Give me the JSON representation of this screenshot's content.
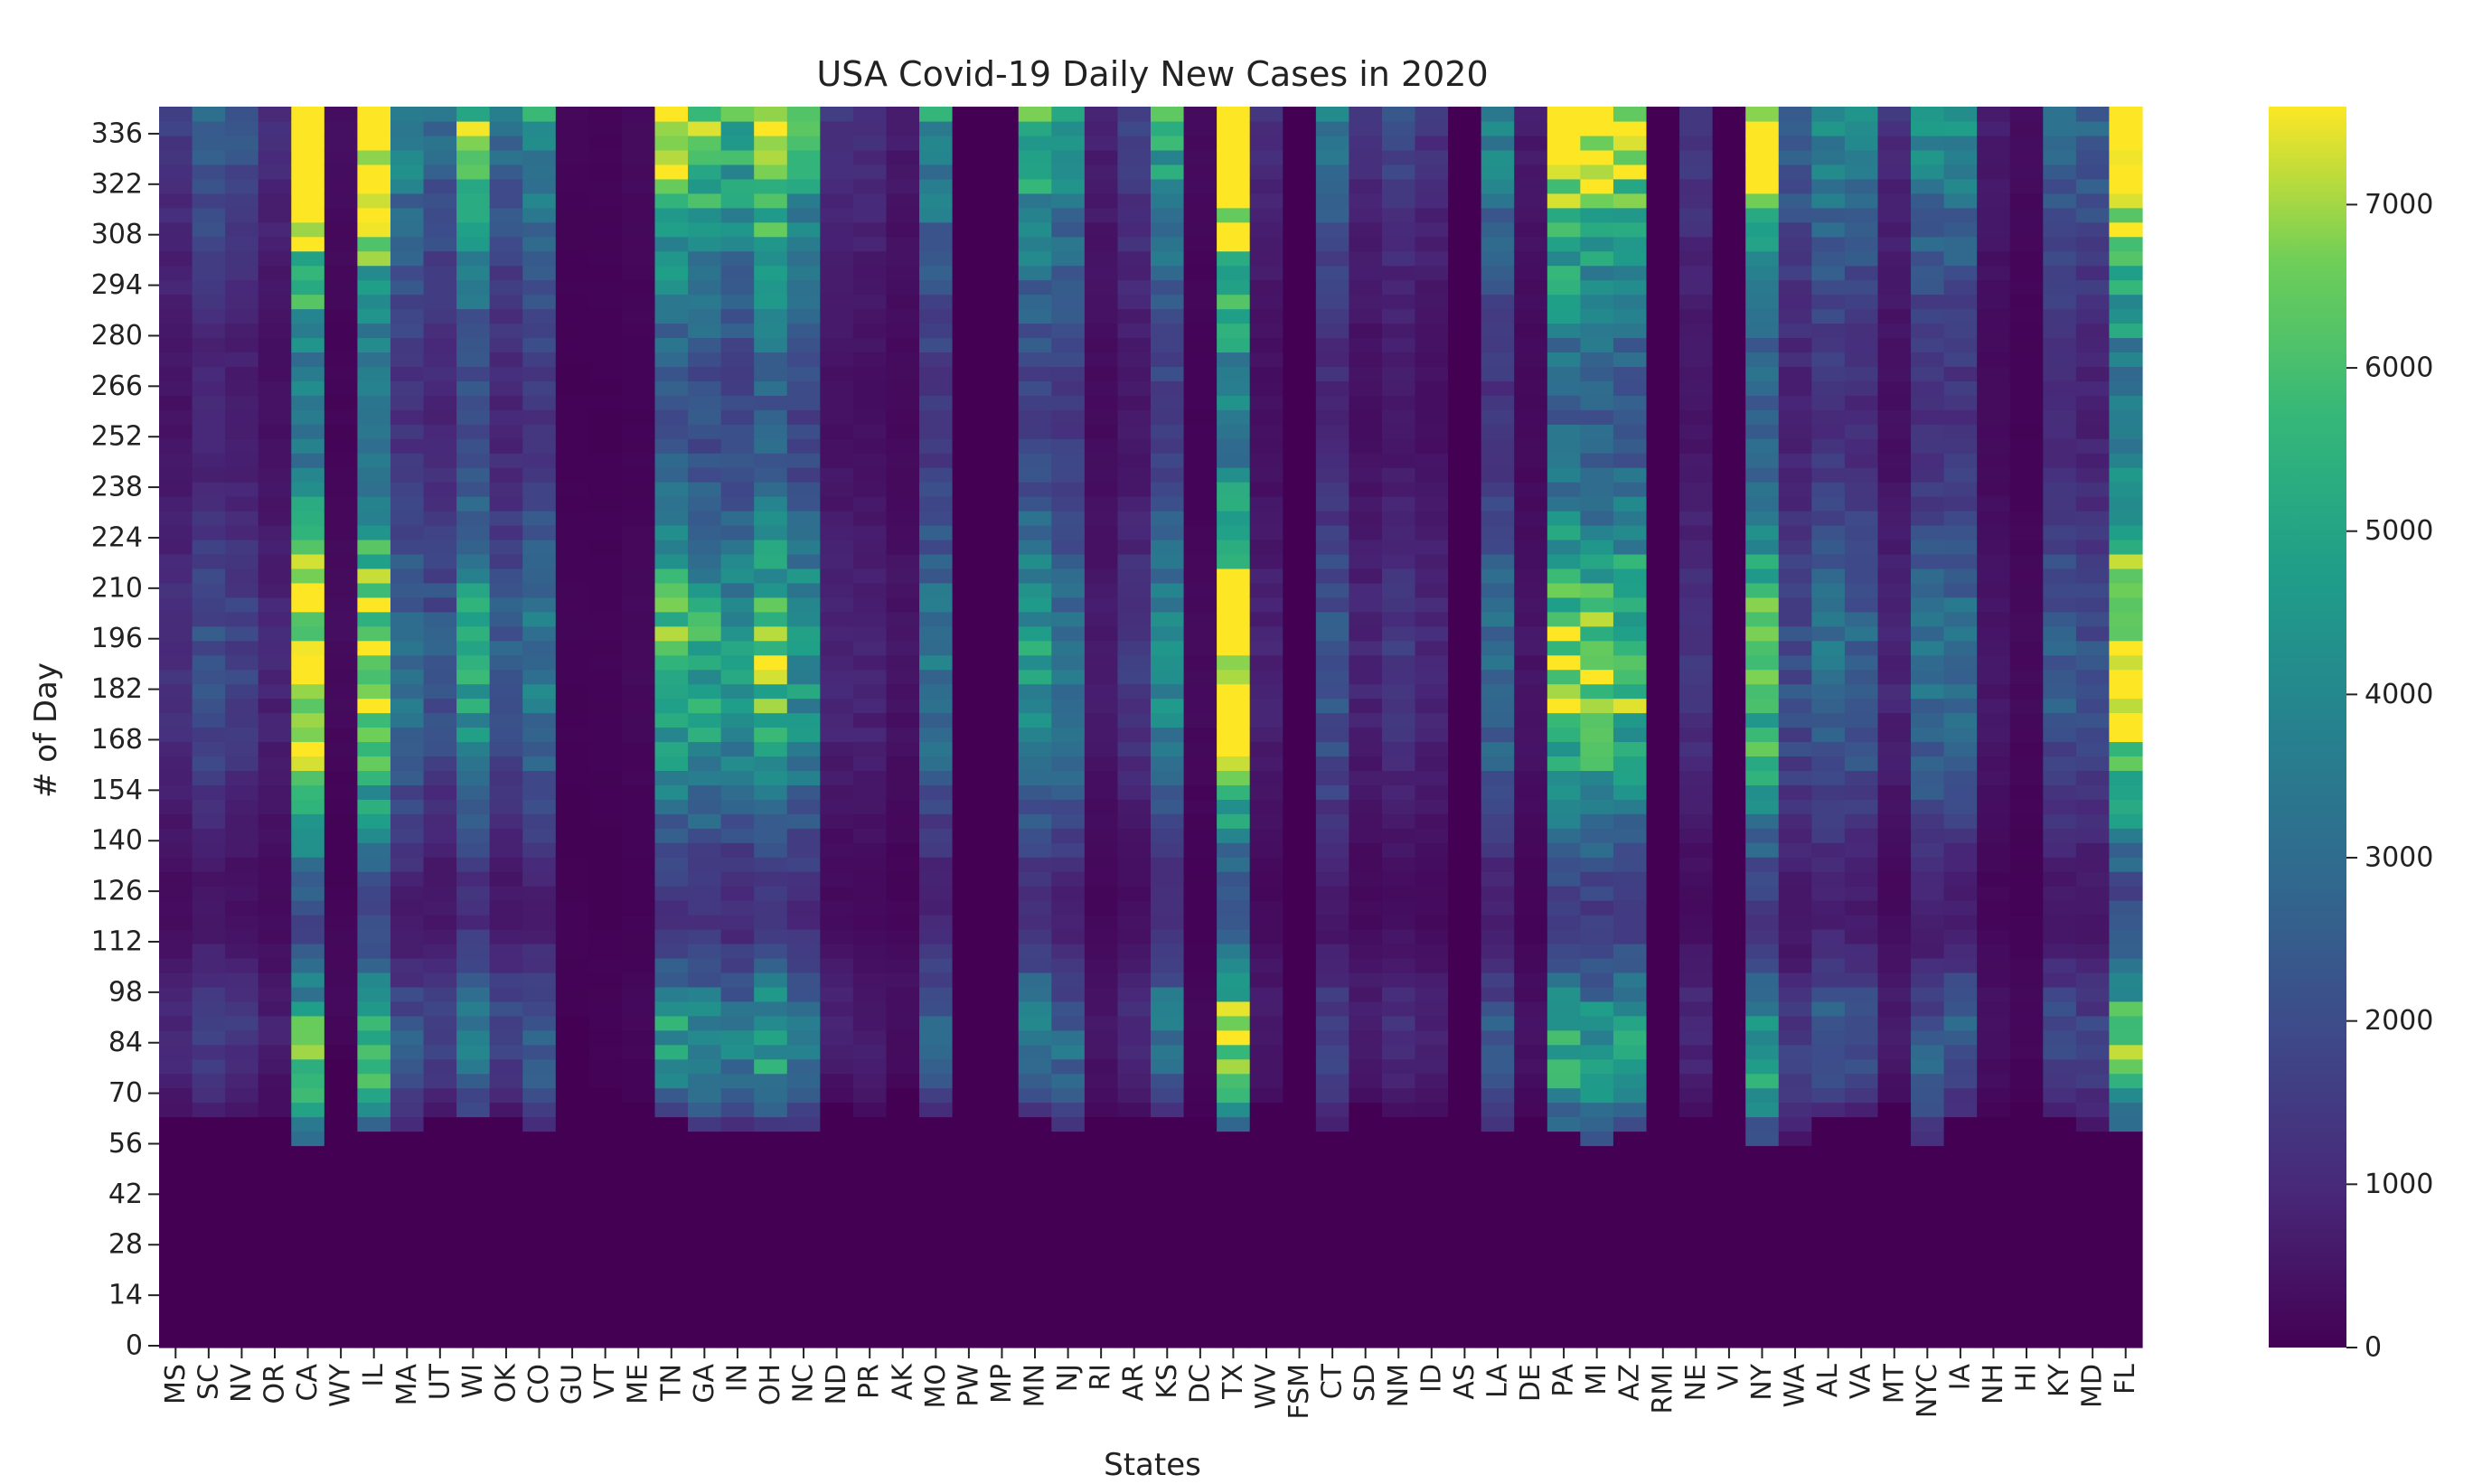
{
  "chart_data": {
    "type": "heatmap",
    "title": "USA Covid-19 Daily New Cases in 2020",
    "xlabel": "States",
    "ylabel": "# of Day",
    "x_categories": [
      "MS",
      "SC",
      "NV",
      "OR",
      "CA",
      "WY",
      "IL",
      "MA",
      "UT",
      "WI",
      "OK",
      "CO",
      "GU",
      "VT",
      "ME",
      "TN",
      "GA",
      "IN",
      "OH",
      "NC",
      "ND",
      "PR",
      "AK",
      "MO",
      "PW",
      "MP",
      "MN",
      "NJ",
      "RI",
      "AR",
      "KS",
      "DC",
      "TX",
      "WV",
      "FSM",
      "CT",
      "SD",
      "NM",
      "ID",
      "AS",
      "LA",
      "DE",
      "PA",
      "MI",
      "AZ",
      "RMI",
      "NE",
      "VI",
      "NY",
      "WA",
      "AL",
      "VA",
      "MT",
      "NYC",
      "IA",
      "NH",
      "HI",
      "KY",
      "MD",
      "FL"
    ],
    "y_ticks": [
      0,
      14,
      28,
      42,
      56,
      70,
      84,
      98,
      112,
      126,
      140,
      154,
      168,
      182,
      196,
      210,
      224,
      238,
      252,
      266,
      280,
      294,
      308,
      322,
      336
    ],
    "y_range": [
      0,
      344
    ],
    "colorbar": {
      "colormap": "viridis",
      "range": [
        0,
        7600
      ],
      "ticks": [
        0,
        1000,
        2000,
        3000,
        4000,
        5000,
        6000,
        7000
      ]
    },
    "outbreak_start_day": 58,
    "series_profiles": [
      {
        "state": "MS",
        "onset": 62,
        "peak": 1700
      },
      {
        "state": "SC",
        "onset": 62,
        "peak": 3000
      },
      {
        "state": "NV",
        "onset": 62,
        "peak": 2400
      },
      {
        "state": "OR",
        "onset": 64,
        "peak": 1300
      },
      {
        "state": "CA",
        "onset": 55,
        "peak": 12000
      },
      {
        "state": "WY",
        "onset": 80,
        "peak": 400
      },
      {
        "state": "IL",
        "onset": 58,
        "peak": 11000
      },
      {
        "state": "MA",
        "onset": 58,
        "peak": 4500
      },
      {
        "state": "UT",
        "onset": 64,
        "peak": 3200
      },
      {
        "state": "WI",
        "onset": 62,
        "peak": 7000
      },
      {
        "state": "OK",
        "onset": 64,
        "peak": 3500
      },
      {
        "state": "CO",
        "onset": 60,
        "peak": 5000
      },
      {
        "state": "GU",
        "onset": 90,
        "peak": 150
      },
      {
        "state": "VT",
        "onset": 70,
        "peak": 150
      },
      {
        "state": "ME",
        "onset": 68,
        "peak": 300
      },
      {
        "state": "TN",
        "onset": 62,
        "peak": 8500
      },
      {
        "state": "GA",
        "onset": 60,
        "peak": 7500
      },
      {
        "state": "IN",
        "onset": 60,
        "peak": 6500
      },
      {
        "state": "OH",
        "onset": 60,
        "peak": 9000
      },
      {
        "state": "NC",
        "onset": 60,
        "peak": 6500
      },
      {
        "state": "ND",
        "onset": 68,
        "peak": 1400
      },
      {
        "state": "PR",
        "onset": 62,
        "peak": 1300
      },
      {
        "state": "AK",
        "onset": 70,
        "peak": 700
      },
      {
        "state": "MO",
        "onset": 62,
        "peak": 5000
      },
      {
        "state": "PW",
        "onset": 400,
        "peak": 0
      },
      {
        "state": "MP",
        "onset": 400,
        "peak": 0
      },
      {
        "state": "MN",
        "onset": 62,
        "peak": 6500
      },
      {
        "state": "NJ",
        "onset": 58,
        "peak": 5200
      },
      {
        "state": "RI",
        "onset": 64,
        "peak": 900
      },
      {
        "state": "AR",
        "onset": 64,
        "peak": 2000
      },
      {
        "state": "KS",
        "onset": 64,
        "peak": 6000
      },
      {
        "state": "DC",
        "onset": 62,
        "peak": 300
      },
      {
        "state": "TX",
        "onset": 60,
        "peak": 13000
      },
      {
        "state": "WV",
        "onset": 66,
        "peak": 1200
      },
      {
        "state": "FSM",
        "onset": 400,
        "peak": 0
      },
      {
        "state": "CT",
        "onset": 58,
        "peak": 3500
      },
      {
        "state": "SD",
        "onset": 66,
        "peak": 1300
      },
      {
        "state": "NM",
        "onset": 64,
        "peak": 2000
      },
      {
        "state": "ID",
        "onset": 64,
        "peak": 1400
      },
      {
        "state": "AS",
        "onset": 400,
        "peak": 0
      },
      {
        "state": "LA",
        "onset": 58,
        "peak": 4500
      },
      {
        "state": "DE",
        "onset": 62,
        "peak": 700
      },
      {
        "state": "PA",
        "onset": 58,
        "peak": 10000
      },
      {
        "state": "MI",
        "onset": 56,
        "peak": 9000
      },
      {
        "state": "AZ",
        "onset": 60,
        "peak": 9000
      },
      {
        "state": "RMI",
        "onset": 400,
        "peak": 0
      },
      {
        "state": "NE",
        "onset": 64,
        "peak": 1800
      },
      {
        "state": "VI",
        "onset": 400,
        "peak": 0
      },
      {
        "state": "NY",
        "onset": 55,
        "peak": 9000
      },
      {
        "state": "WA",
        "onset": 56,
        "peak": 3000
      },
      {
        "state": "AL",
        "onset": 62,
        "peak": 4500
      },
      {
        "state": "VA",
        "onset": 62,
        "peak": 4000
      },
      {
        "state": "MT",
        "onset": 66,
        "peak": 1300
      },
      {
        "state": "NYC",
        "onset": 55,
        "peak": 4500
      },
      {
        "state": "IA",
        "onset": 62,
        "peak": 4500
      },
      {
        "state": "NH",
        "onset": 64,
        "peak": 800
      },
      {
        "state": "HI",
        "onset": 66,
        "peak": 300
      },
      {
        "state": "KY",
        "onset": 62,
        "peak": 3500
      },
      {
        "state": "MD",
        "onset": 60,
        "peak": 3000
      },
      {
        "state": "FL",
        "onset": 60,
        "peak": 12000
      }
    ]
  }
}
